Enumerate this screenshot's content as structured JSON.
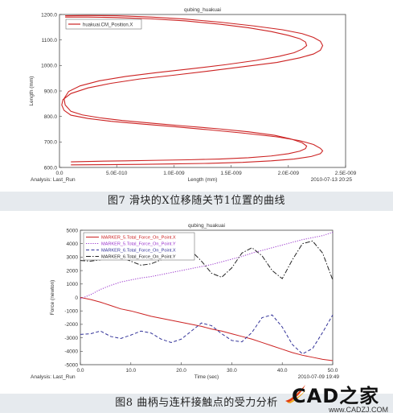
{
  "figure1": {
    "caption": "图7  滑块的X位移随关节1位置的曲线",
    "chart_data": {
      "type": "line",
      "title": "qubing_huakuai",
      "xlabel": "Length (mm)",
      "ylabel": "Length (mm)",
      "xlim": [
        0,
        2.5e-09
      ],
      "ylim": [
        600,
        1200
      ],
      "x_ticks": [
        "0.0",
        "5.0E-010",
        "1.0E-009",
        "1.5E-009",
        "2.0E-009",
        "2.5E-009"
      ],
      "y_ticks": [
        "600.0",
        "700.0",
        "800.0",
        "900.0",
        "1000.0",
        "1100.0",
        "1200.0"
      ],
      "footer_left": "Analysis:  Last_Run",
      "footer_right": "2010-07-13 20:25",
      "legend_position": "top-left",
      "color": "#cc2222",
      "series": [
        {
          "name": "huakuai.CM_Position.X",
          "outer_x": [
            5e-11,
            2.5e-10,
            5e-10,
            8e-10,
            1.1e-09,
            1.4e-09,
            1.7e-09,
            1.95e-09,
            2.12e-09,
            2.22e-09,
            2.28e-09,
            2.3e-09,
            2.28e-09,
            2.22e-09,
            2.1e-09,
            1.9e-09,
            1.6e-09,
            1.3e-09,
            1e-09,
            7e-10,
            4.5e-10,
            2.5e-10,
            1e-10,
            3e-11,
            2e-11,
            4e-11,
            1e-10,
            2.5e-10,
            4.5e-10,
            7e-10,
            1e-09,
            1.3e-09,
            1.6e-09,
            1.9e-09,
            2.1e-09,
            2.22e-09,
            2.28e-09,
            2.3e-09,
            2.28e-09,
            2.2e-09,
            2.05e-09,
            1.85e-09,
            1.6e-09,
            1.3e-09,
            1e-09,
            7e-10,
            4e-10,
            1e-10
          ],
          "outer_y": [
            1195,
            1196,
            1195,
            1190,
            1182,
            1170,
            1155,
            1140,
            1125,
            1110,
            1095,
            1078,
            1060,
            1045,
            1030,
            1012,
            995,
            978,
            962,
            947,
            930,
            912,
            890,
            866,
            845,
            824,
            805,
            792,
            781,
            771,
            760,
            748,
            735,
            720,
            705,
            690,
            675,
            665,
            654,
            643,
            633,
            626,
            620,
            616,
            614,
            612,
            611,
            610
          ],
          "inner_x": [
            5e-11,
            2.5e-10,
            5e-10,
            8e-10,
            1.1e-09,
            1.4e-09,
            1.65e-09,
            1.85e-09,
            2e-09,
            2.1e-09,
            2.15e-09,
            2.16e-09,
            2.12e-09,
            2.05e-09,
            1.92e-09,
            1.72e-09,
            1.45e-09,
            1.15e-09,
            8.5e-10,
            5.8e-10,
            3.5e-10,
            1.8e-10,
            8e-11,
            4e-11,
            5e-11,
            1e-10,
            2e-10,
            3.5e-10,
            5.5e-10,
            8e-10,
            1.08e-09,
            1.38e-09,
            1.65e-09,
            1.88e-09,
            2.02e-09,
            2.12e-09,
            2.16e-09,
            2.15e-09,
            2.1e-09,
            2e-09,
            1.85e-09,
            1.65e-09,
            1.4e-09,
            1.12e-09,
            8.5e-10,
            5.8e-10,
            3e-10,
            1e-10
          ],
          "inner_y": [
            1190,
            1190,
            1188,
            1183,
            1175,
            1162,
            1148,
            1133,
            1118,
            1105,
            1092,
            1078,
            1064,
            1050,
            1036,
            1020,
            1003,
            987,
            972,
            957,
            940,
            920,
            898,
            870,
            845,
            820,
            806,
            795,
            784,
            774,
            763,
            752,
            740,
            726,
            712,
            697,
            684,
            674,
            664,
            654,
            645,
            638,
            633,
            630,
            628,
            626,
            624,
            622
          ]
        }
      ]
    }
  },
  "figure2": {
    "caption": "图8  曲柄与连杆接触点的受力分析",
    "chart_data": {
      "type": "line",
      "title": "qubing_huakuai",
      "xlabel": "Time (sec)",
      "ylabel": "Force (newton)",
      "xlim": [
        0,
        50
      ],
      "ylim": [
        -5000,
        5000
      ],
      "x_ticks": [
        "0.0",
        "10.0",
        "20.0",
        "30.0",
        "40.0",
        "50.0"
      ],
      "y_ticks": [
        "-5000",
        "-4000",
        "-3000",
        "-2000",
        "-1000",
        "0",
        "1000",
        "2000",
        "3000",
        "4000",
        "5000"
      ],
      "footer_left": "Analysis:  Last_Run",
      "footer_right": "2010-07-09 19:49",
      "legend_position": "top-left",
      "series": [
        {
          "name": "MARKER_5.Total_Force_On_Point.X",
          "color": "#cc2222",
          "style": "solid",
          "x": [
            0,
            2,
            4,
            6,
            8,
            10,
            12,
            14,
            16,
            18,
            20,
            22,
            24,
            26,
            28,
            30,
            32,
            34,
            36,
            38,
            40,
            42,
            44,
            46,
            48,
            50
          ],
          "values": [
            0,
            -150,
            -350,
            -600,
            -850,
            -1000,
            -1200,
            -1400,
            -1550,
            -1700,
            -1850,
            -2000,
            -2150,
            -2350,
            -2500,
            -2700,
            -2900,
            -3100,
            -3350,
            -3600,
            -3850,
            -4100,
            -4300,
            -4450,
            -4600,
            -4700
          ]
        },
        {
          "name": "MARKER_5.Total_Force_On_Point.Y",
          "color": "#9933cc",
          "style": "dotted",
          "x": [
            0,
            2,
            4,
            6,
            8,
            10,
            12,
            14,
            16,
            18,
            20,
            22,
            24,
            26,
            28,
            30,
            32,
            34,
            36,
            38,
            40,
            42,
            44,
            46,
            48,
            50
          ],
          "values": [
            -100,
            200,
            600,
            900,
            1150,
            1300,
            1450,
            1550,
            1700,
            1850,
            2000,
            2150,
            2300,
            2450,
            2650,
            2850,
            3050,
            3300,
            3500,
            3700,
            3900,
            4100,
            4300,
            4450,
            4600,
            4850
          ]
        },
        {
          "name": "MARKER_6.Total_Force_On_Point.X",
          "color": "#333399",
          "style": "dashed",
          "x": [
            0,
            2,
            4,
            6,
            8,
            10,
            12,
            14,
            16,
            18,
            20,
            22,
            24,
            26,
            28,
            30,
            32,
            34,
            36,
            38,
            40,
            42,
            44,
            46,
            48,
            50
          ],
          "values": [
            -2750,
            -2700,
            -2500,
            -2900,
            -3050,
            -2800,
            -2500,
            -2650,
            -3100,
            -3350,
            -3100,
            -2500,
            -1900,
            -2100,
            -2700,
            -3200,
            -3300,
            -2600,
            -1500,
            -1300,
            -2200,
            -3500,
            -4200,
            -3800,
            -2600,
            -1300
          ]
        },
        {
          "name": "MARKER_6.Total_Force_On_Point.Y",
          "color": "#222222",
          "style": "dashdot",
          "x": [
            0,
            2,
            4,
            6,
            8,
            10,
            12,
            14,
            16,
            18,
            20,
            22,
            24,
            26,
            28,
            30,
            32,
            34,
            36,
            38,
            40,
            42,
            44,
            46,
            48,
            50
          ],
          "values": [
            2750,
            2700,
            2800,
            3050,
            3000,
            2700,
            2400,
            2500,
            2800,
            3150,
            3300,
            3450,
            2700,
            1800,
            1500,
            2200,
            3300,
            3700,
            3100,
            2000,
            1400,
            2800,
            4000,
            4200,
            3300,
            1300
          ]
        }
      ]
    }
  },
  "watermark": {
    "main": "CAD之家",
    "url": "www.CADZJ.COM"
  }
}
